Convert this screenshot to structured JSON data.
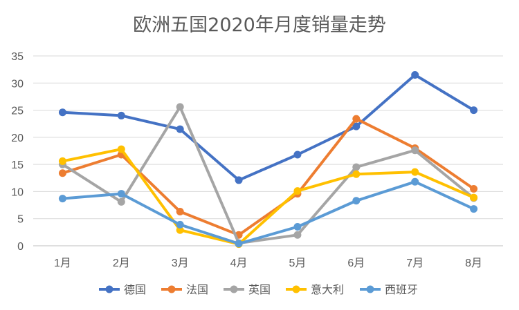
{
  "chart_data": {
    "type": "line",
    "title": "欧洲五国2020年月度销量走势",
    "xlabel": "",
    "ylabel": "",
    "categories": [
      "1月",
      "2月",
      "3月",
      "4月",
      "5月",
      "6月",
      "7月",
      "8月"
    ],
    "ylim": [
      0,
      35
    ],
    "yticks": [
      0,
      5,
      10,
      15,
      20,
      25,
      30,
      35
    ],
    "grid": true,
    "legend_position": "bottom",
    "series": [
      {
        "name": "德国",
        "color": "#4472C4",
        "values": [
          24.6,
          24.0,
          21.5,
          12.1,
          16.8,
          22.0,
          31.5,
          25.0
        ]
      },
      {
        "name": "法国",
        "color": "#ED7D31",
        "values": [
          13.4,
          16.8,
          6.3,
          2.0,
          9.6,
          23.4,
          18.0,
          10.5
        ]
      },
      {
        "name": "英国",
        "color": "#A5A5A5",
        "values": [
          15.0,
          8.1,
          25.6,
          0.5,
          2.0,
          14.5,
          17.6,
          8.8
        ]
      },
      {
        "name": "意大利",
        "color": "#FFC000",
        "values": [
          15.6,
          17.8,
          2.9,
          0.3,
          10.1,
          13.2,
          13.6,
          8.9
        ]
      },
      {
        "name": "西班牙",
        "color": "#5B9BD5",
        "values": [
          8.7,
          9.6,
          3.9,
          0.4,
          3.5,
          8.3,
          11.8,
          6.8
        ]
      }
    ]
  }
}
